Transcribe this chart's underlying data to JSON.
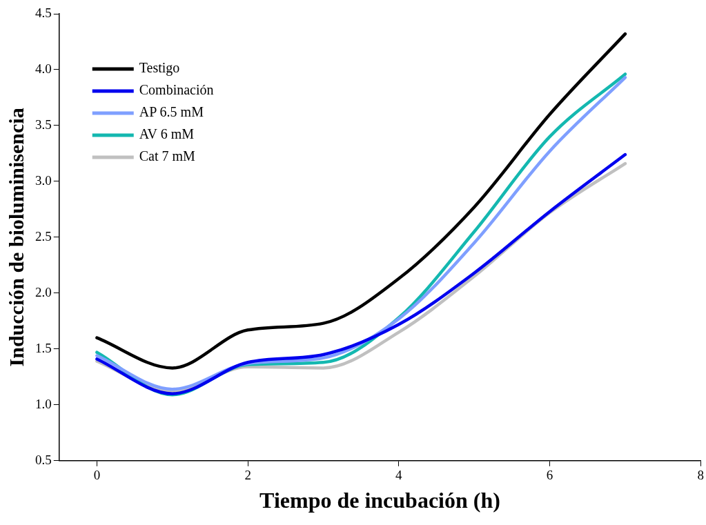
{
  "chart_data": {
    "type": "line",
    "xlabel": "Tiempo de incubación (h)",
    "ylabel": "Inducción de bioluminisencia",
    "x": [
      0,
      1,
      2,
      3,
      4,
      5,
      6,
      7
    ],
    "series": [
      {
        "name": "Testigo",
        "color": "#000000",
        "values": [
          1.6,
          1.33,
          1.67,
          1.73,
          2.13,
          2.77,
          3.6,
          4.32
        ]
      },
      {
        "name": "Combinación",
        "color": "#0000ee",
        "values": [
          1.41,
          1.1,
          1.38,
          1.45,
          1.72,
          2.18,
          2.73,
          3.24
        ]
      },
      {
        "name": "AP 6.5 mM",
        "color": "#7f9fff",
        "values": [
          1.44,
          1.14,
          1.37,
          1.42,
          1.77,
          2.45,
          3.27,
          3.93
        ]
      },
      {
        "name": "AV 6 mM",
        "color": "#14b8b0",
        "values": [
          1.47,
          1.09,
          1.36,
          1.38,
          1.78,
          2.55,
          3.4,
          3.96
        ]
      },
      {
        "name": "Cat 7 mM",
        "color": "#c0c0c0",
        "values": [
          1.39,
          1.12,
          1.34,
          1.33,
          1.65,
          2.15,
          2.72,
          3.16
        ]
      }
    ],
    "xlim": [
      -0.5,
      8
    ],
    "xticks": [
      0,
      2,
      4,
      6,
      8
    ],
    "ylim": [
      0.5,
      4.5
    ],
    "yticks": [
      {
        "value": 0.5,
        "label": "0.5"
      },
      {
        "value": 1,
        "label": "1.0"
      },
      {
        "value": 1.5,
        "label": "1.5"
      },
      {
        "value": 2,
        "label": "2.0"
      },
      {
        "value": 2.5,
        "label": "2.5"
      },
      {
        "value": 3,
        "label": "3.0"
      },
      {
        "value": 3.5,
        "label": "3.5"
      },
      {
        "value": 4,
        "label": "4.0"
      },
      {
        "value": 4.5,
        "label": "4.5"
      }
    ],
    "grid": false,
    "legend": "top left",
    "marker": "none",
    "line_style": "solid"
  }
}
